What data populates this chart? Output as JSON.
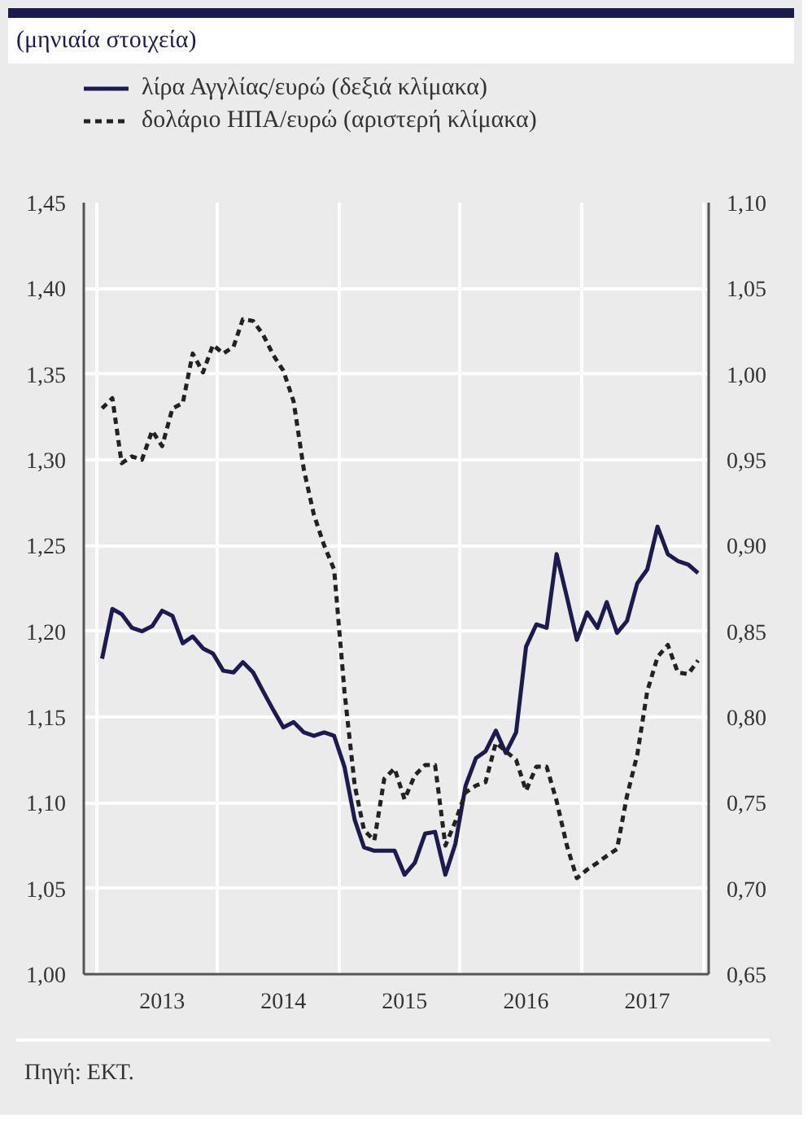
{
  "chart_data": {
    "type": "line",
    "subtitle": "(μηνιαία στοιχεία)",
    "annotations": [
      "Πηγή: ΕΚΤ."
    ],
    "x": [
      "2013-01",
      "2013-02",
      "2013-03",
      "2013-04",
      "2013-05",
      "2013-06",
      "2013-07",
      "2013-08",
      "2013-09",
      "2013-10",
      "2013-11",
      "2013-12",
      "2014-01",
      "2014-02",
      "2014-03",
      "2014-04",
      "2014-05",
      "2014-06",
      "2014-07",
      "2014-08",
      "2014-09",
      "2014-10",
      "2014-11",
      "2014-12",
      "2015-01",
      "2015-02",
      "2015-03",
      "2015-04",
      "2015-05",
      "2015-06",
      "2015-07",
      "2015-08",
      "2015-09",
      "2015-10",
      "2015-11",
      "2015-12",
      "2016-01",
      "2016-02",
      "2016-03",
      "2016-04",
      "2016-05",
      "2016-06",
      "2016-07",
      "2016-08",
      "2016-09",
      "2016-10",
      "2016-11",
      "2016-12",
      "2017-01",
      "2017-02",
      "2017-03",
      "2017-04",
      "2017-05",
      "2017-06",
      "2017-07",
      "2017-08",
      "2017-09",
      "2017-10",
      "2017-11",
      "2017-12"
    ],
    "series": [
      {
        "name": "λίρα Αγγλίας/ευρώ (δεξιά κλίμακα)",
        "color": "#1c1a4e",
        "axis": "y2",
        "line_style": "solid",
        "values": [
          0.834,
          0.863,
          0.86,
          0.852,
          0.85,
          0.853,
          0.862,
          0.859,
          0.843,
          0.847,
          0.84,
          0.837,
          0.827,
          0.826,
          0.832,
          0.826,
          0.815,
          0.804,
          0.794,
          0.797,
          0.791,
          0.789,
          0.791,
          0.789,
          0.771,
          0.74,
          0.724,
          0.722,
          0.722,
          0.722,
          0.708,
          0.715,
          0.732,
          0.733,
          0.708,
          0.726,
          0.76,
          0.776,
          0.78,
          0.792,
          0.779,
          0.791,
          0.841,
          0.854,
          0.852,
          0.895,
          0.87,
          0.845,
          0.861,
          0.852,
          0.867,
          0.849,
          0.856,
          0.878,
          0.886,
          0.911,
          0.895,
          0.891,
          0.889,
          0.884
        ]
      },
      {
        "name": "δολάριο ΗΠΑ/ευρώ (αριστερή κλίμακα)",
        "color": "#222222",
        "axis": "y",
        "line_style": "dashed",
        "values": [
          1.33,
          1.336,
          1.298,
          1.302,
          1.3,
          1.317,
          1.308,
          1.33,
          1.333,
          1.362,
          1.351,
          1.367,
          1.362,
          1.366,
          1.382,
          1.381,
          1.373,
          1.361,
          1.352,
          1.334,
          1.294,
          1.268,
          1.25,
          1.236,
          1.165,
          1.11,
          1.084,
          1.078,
          1.114,
          1.12,
          1.102,
          1.116,
          1.122,
          1.122,
          1.075,
          1.089,
          1.106,
          1.11,
          1.112,
          1.135,
          1.13,
          1.125,
          1.107,
          1.121,
          1.121,
          1.101,
          1.075,
          1.056,
          1.061,
          1.065,
          1.069,
          1.073,
          1.104,
          1.128,
          1.165,
          1.185,
          1.192,
          1.176,
          1.175,
          1.183
        ]
      }
    ],
    "xlim": [
      "2012-11-07",
      "2018-01-02"
    ],
    "xticks": [
      {
        "value": "2012-12-16",
        "label": null
      },
      {
        "value": "2013-07-01",
        "label": "2013"
      },
      {
        "value": "2013-12-16",
        "label": null
      },
      {
        "value": "2014-07-01",
        "label": "2014"
      },
      {
        "value": "2014-12-16",
        "label": null
      },
      {
        "value": "2015-07-01",
        "label": "2015"
      },
      {
        "value": "2015-12-16",
        "label": null
      },
      {
        "value": "2016-07-01",
        "label": "2016"
      },
      {
        "value": "2016-12-16",
        "label": null
      },
      {
        "value": "2017-07-01",
        "label": "2017"
      },
      {
        "value": "2017-12-16",
        "label": null
      }
    ],
    "ylim": [
      1.0,
      1.45
    ],
    "yticks": [
      {
        "value": 1.0,
        "label": "1,00"
      },
      {
        "value": 1.05,
        "label": "1,05"
      },
      {
        "value": 1.1,
        "label": "1,10"
      },
      {
        "value": 1.15,
        "label": "1,15"
      },
      {
        "value": 1.2,
        "label": "1,20"
      },
      {
        "value": 1.25,
        "label": "1,25"
      },
      {
        "value": 1.3,
        "label": "1,30"
      },
      {
        "value": 1.35,
        "label": "1,35"
      },
      {
        "value": 1.4,
        "label": "1,40"
      },
      {
        "value": 1.45,
        "label": "1,45"
      }
    ],
    "y2lim": [
      0.65,
      1.1
    ],
    "y2ticks": [
      {
        "value": 0.65,
        "label": "0,65"
      },
      {
        "value": 0.7,
        "label": "0,70"
      },
      {
        "value": 0.75,
        "label": "0,75"
      },
      {
        "value": 0.8,
        "label": "0,80"
      },
      {
        "value": 0.85,
        "label": "0,85"
      },
      {
        "value": 0.9,
        "label": "0,90"
      },
      {
        "value": 0.95,
        "label": "0,95"
      },
      {
        "value": 1.0,
        "label": "1,00"
      },
      {
        "value": 1.05,
        "label": "1,05"
      },
      {
        "value": 1.1,
        "label": "1,10"
      }
    ],
    "grid": true,
    "legend": "top left"
  }
}
